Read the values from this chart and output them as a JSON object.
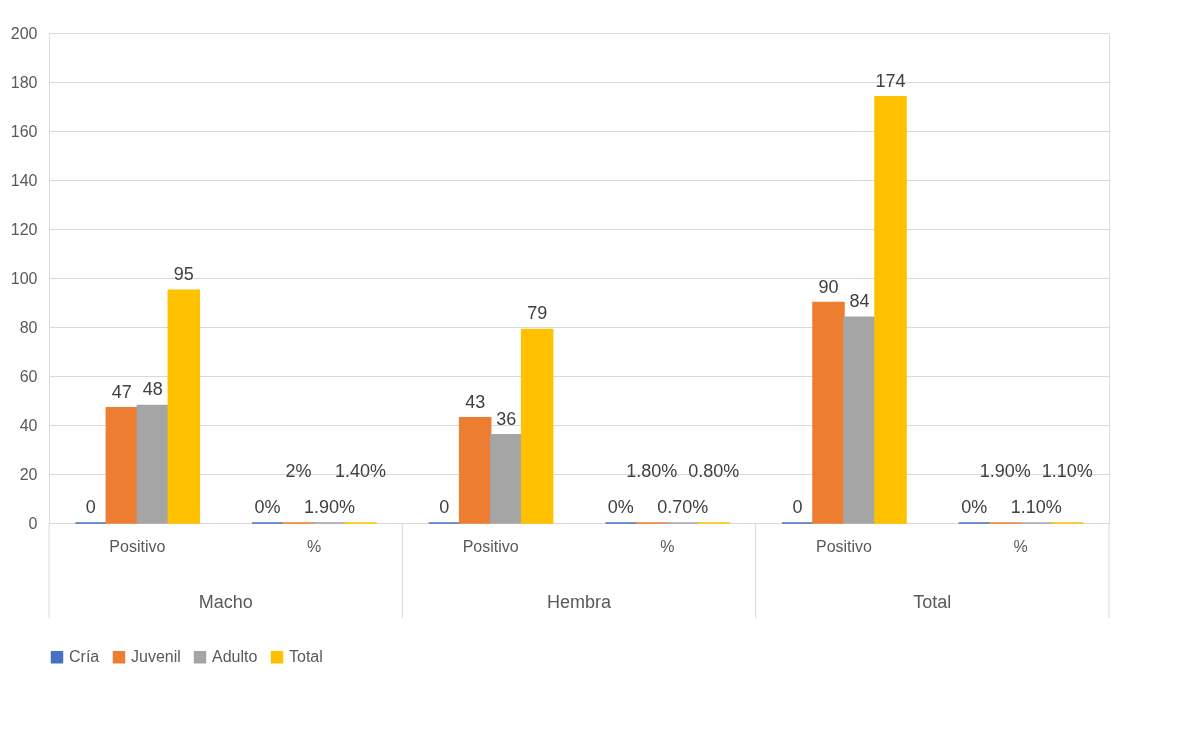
{
  "chart_data": {
    "type": "bar",
    "categories": [
      "Positivo",
      "%",
      "Positivo",
      "%",
      "Positivo",
      "%"
    ],
    "annotations": [
      "Macho",
      "Hembra",
      "Total"
    ],
    "series": [
      {
        "name": "Cría",
        "color": "#4472c4",
        "values": [
          0,
          0,
          0,
          0,
          0,
          0
        ],
        "value_labels": [
          "0",
          "0%",
          "0",
          "0%",
          "0",
          "0%"
        ]
      },
      {
        "name": "Juvenil",
        "color": "#ed7d31",
        "values": [
          47,
          0.02,
          43,
          0.018,
          90,
          0.019
        ],
        "value_labels": [
          "47",
          "2%",
          "43",
          "1.80%",
          "90",
          "1.90%"
        ]
      },
      {
        "name": "Adulto",
        "color": "#a5a5a5",
        "values": [
          48,
          0.019,
          36,
          0.007,
          84,
          0.011
        ],
        "value_labels": [
          "48",
          "1.90%",
          "36",
          "0.70%",
          "84",
          "1.10%"
        ]
      },
      {
        "name": "Total",
        "color": "#ffc000",
        "values": [
          95,
          0.014,
          79,
          0.008,
          174,
          0.011
        ],
        "value_labels": [
          "95",
          "1.40%",
          "79",
          "0.80%",
          "174",
          "1.10%"
        ]
      }
    ],
    "ylim": [
      0,
      200
    ],
    "yticks": [
      0,
      20,
      40,
      60,
      80,
      100,
      120,
      140,
      160,
      180,
      200
    ],
    "grid": "y",
    "legend": "bottom"
  }
}
